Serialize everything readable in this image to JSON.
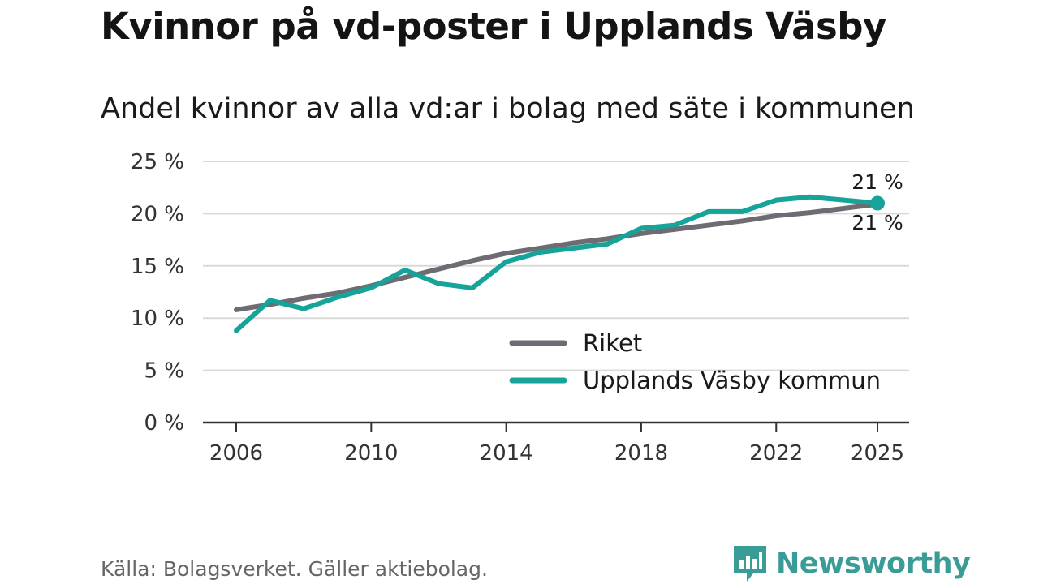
{
  "title": "Kvinnor på vd-poster i Upplands Väsby",
  "subtitle": "Andel kvinnor av alla vd:ar i bolag med säte i kommunen",
  "source": "Källa: Bolagsverket. Gäller aktiebolag.",
  "brand": "Newsworthy",
  "colors": {
    "riket": "#6e6c72",
    "kommun": "#16a399",
    "brand": "#3a9c96",
    "grid": "#d9d9d9",
    "axis": "#333333"
  },
  "chart_data": {
    "type": "line",
    "title": "Andel kvinnor av alla vd:ar i bolag med säte i kommunen",
    "xlabel": "",
    "ylabel": "",
    "x": [
      2006,
      2007,
      2008,
      2009,
      2010,
      2011,
      2012,
      2013,
      2014,
      2015,
      2016,
      2017,
      2018,
      2019,
      2020,
      2021,
      2022,
      2023,
      2024,
      2025
    ],
    "xlim": [
      2006,
      2025
    ],
    "ylim": [
      0,
      25
    ],
    "grid": true,
    "x_ticks": [
      2006,
      2010,
      2014,
      2018,
      2022,
      2025
    ],
    "x_tick_labels": [
      "2006",
      "2010",
      "2014",
      "2018",
      "2022",
      "2025"
    ],
    "y_ticks": [
      0,
      5,
      10,
      15,
      20,
      25
    ],
    "y_tick_labels": [
      "0 %",
      "5 %",
      "10 %",
      "15 %",
      "20 %",
      "25 %"
    ],
    "legend_position": "bottom-right",
    "series": [
      {
        "name": "Riket",
        "values": [
          10.8,
          11.3,
          11.9,
          12.4,
          13.1,
          13.9,
          14.7,
          15.5,
          16.2,
          16.7,
          17.2,
          17.6,
          18.1,
          18.5,
          18.9,
          19.3,
          19.8,
          20.1,
          20.5,
          20.9
        ],
        "end_label": "21 %"
      },
      {
        "name": "Upplands Väsby kommun",
        "values": [
          8.8,
          11.7,
          10.9,
          12.0,
          12.9,
          14.6,
          13.3,
          12.9,
          15.4,
          16.3,
          16.7,
          17.1,
          18.6,
          18.9,
          20.2,
          20.2,
          21.3,
          21.6,
          21.3,
          21.0
        ],
        "end_label": "21 %"
      }
    ]
  }
}
